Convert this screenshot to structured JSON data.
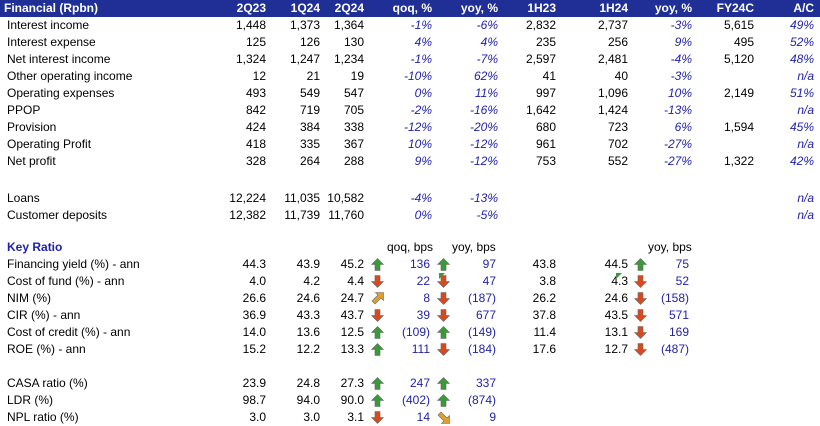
{
  "header": {
    "title": "Financial (Rpbn)",
    "cols": [
      "2Q23",
      "1Q24",
      "2Q24",
      "qoq, %",
      "yoy, %",
      "1H23",
      "1H24",
      "yoy, %",
      "FY24C",
      "A/C"
    ]
  },
  "financial_rows": [
    {
      "label": "Interest income",
      "v": [
        "1,448",
        "1,373",
        "1,364",
        "-1%",
        "-6%",
        "2,832",
        "2,737",
        "-3%",
        "5,615",
        "49%"
      ]
    },
    {
      "label": "Interest expense",
      "v": [
        "125",
        "126",
        "130",
        "4%",
        "4%",
        "235",
        "256",
        "9%",
        "495",
        "52%"
      ]
    },
    {
      "label": "Net interest income",
      "v": [
        "1,324",
        "1,247",
        "1,234",
        "-1%",
        "-7%",
        "2,597",
        "2,481",
        "-4%",
        "5,120",
        "48%"
      ]
    },
    {
      "label": "Other operating income",
      "v": [
        "12",
        "21",
        "19",
        "-10%",
        "62%",
        "41",
        "40",
        "-3%",
        "",
        "n/a"
      ]
    },
    {
      "label": "Operating expenses",
      "v": [
        "493",
        "549",
        "547",
        "0%",
        "11%",
        "997",
        "1,096",
        "10%",
        "2,149",
        "51%"
      ]
    },
    {
      "label": "PPOP",
      "v": [
        "842",
        "719",
        "705",
        "-2%",
        "-16%",
        "1,642",
        "1,424",
        "-13%",
        "",
        "n/a"
      ]
    },
    {
      "label": "Provision",
      "v": [
        "424",
        "384",
        "338",
        "-12%",
        "-20%",
        "680",
        "723",
        "6%",
        "1,594",
        "45%"
      ]
    },
    {
      "label": "Operating Profit",
      "v": [
        "418",
        "335",
        "367",
        "10%",
        "-12%",
        "961",
        "702",
        "-27%",
        "",
        "n/a"
      ]
    },
    {
      "label": "Net profit",
      "v": [
        "328",
        "264",
        "288",
        "9%",
        "-12%",
        "753",
        "552",
        "-27%",
        "1,322",
        "42%"
      ]
    }
  ],
  "balance_rows": [
    {
      "label": "Loans",
      "v": [
        "12,224",
        "11,035",
        "10,582",
        "-4%",
        "-13%",
        "",
        "",
        "",
        "",
        "n/a"
      ]
    },
    {
      "label": "Customer deposits",
      "v": [
        "12,382",
        "11,739",
        "11,760",
        "0%",
        "-5%",
        "",
        "",
        "",
        "",
        "n/a"
      ]
    }
  ],
  "key_ratio": {
    "title": "Key Ratio",
    "qoq_header": "qoq, bps",
    "yoy_header": "yoy, bps",
    "yoy2_header": "yoy, bps",
    "rows": [
      {
        "label": "Financing yield (%) - ann",
        "a": "44.3",
        "b": "43.9",
        "c": "45.2",
        "qi": "up-green",
        "qoq": "136",
        "yi": "up-green",
        "yoy": "97",
        "d": "43.8",
        "e": "44.5",
        "y2i": "up-green",
        "yoy2": "75"
      },
      {
        "label": "Cost of fund (%) - ann",
        "a": "4.0",
        "b": "4.2",
        "c": "4.4",
        "qi": "down-red",
        "qoq": "22",
        "yi": "down-red",
        "yoy": "47",
        "d": "3.8",
        "e": "4.3",
        "y2i": "down-red",
        "yoy2": "52"
      },
      {
        "label": "NIM (%)",
        "a": "26.6",
        "b": "24.6",
        "c": "24.7",
        "qi": "up-right-amber",
        "qoq": "8",
        "yi": "down-red",
        "yoy": "(187)",
        "d": "26.2",
        "e": "24.6",
        "y2i": "down-red",
        "yoy2": "(158)"
      },
      {
        "label": "CIR (%) - ann",
        "a": "36.9",
        "b": "43.3",
        "c": "43.7",
        "qi": "down-red",
        "qoq": "39",
        "yi": "down-red",
        "yoy": "677",
        "d": "37.8",
        "e": "43.5",
        "y2i": "down-red",
        "yoy2": "571"
      },
      {
        "label": "Cost of credit (%) - ann",
        "a": "14.0",
        "b": "13.6",
        "c": "12.5",
        "qi": "up-green",
        "qoq": "(109)",
        "yi": "up-green",
        "yoy": "(149)",
        "d": "11.4",
        "e": "13.1",
        "y2i": "down-red",
        "yoy2": "169"
      },
      {
        "label": "ROE (%) - ann",
        "a": "15.2",
        "b": "12.2",
        "c": "13.3",
        "qi": "up-green",
        "qoq": "111",
        "yi": "down-red",
        "yoy": "(184)",
        "d": "17.6",
        "e": "12.7",
        "y2i": "down-red",
        "yoy2": "(487)"
      }
    ]
  },
  "other_ratios": [
    {
      "label": "CASA ratio (%)",
      "a": "23.9",
      "b": "24.8",
      "c": "27.3",
      "qi": "up-green",
      "qoq": "247",
      "yi": "up-green",
      "yoy": "337"
    },
    {
      "label": "LDR (%)",
      "a": "98.7",
      "b": "94.0",
      "c": "90.0",
      "qi": "up-green",
      "qoq": "(402)",
      "yi": "up-green",
      "yoy": "(874)"
    },
    {
      "label": "NPL ratio (%)",
      "a": "3.0",
      "b": "3.0",
      "c": "3.1",
      "qi": "down-red",
      "qoq": "14",
      "yi": "down-right-amber",
      "yoy": "9"
    }
  ],
  "colors": {
    "header_bg": "#1f2f96",
    "text_blue": "#1f1fa8",
    "icon_green": "#3a9a3a",
    "icon_red": "#d64a1e",
    "icon_amber": "#e0a030"
  }
}
